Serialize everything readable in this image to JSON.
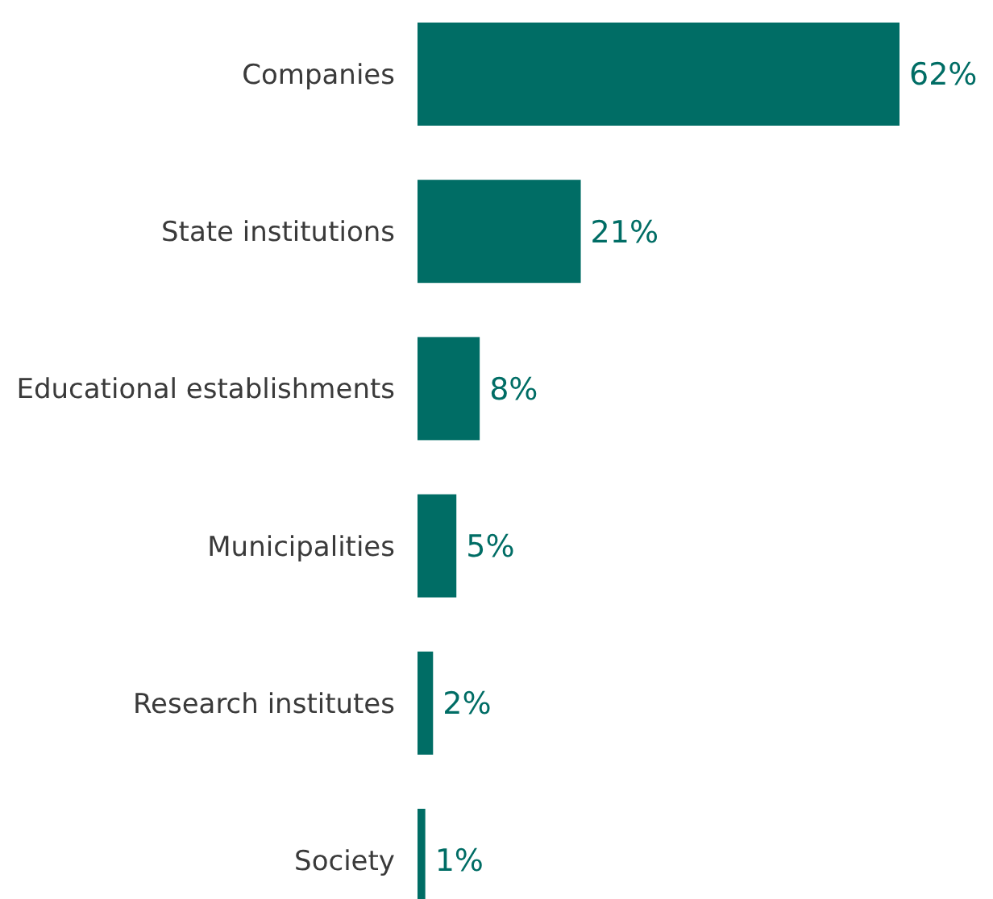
{
  "chart_data": {
    "type": "bar",
    "orientation": "horizontal",
    "categories": [
      "Companies",
      "State institutions",
      "Educational establishments",
      "Municipalities",
      "Research institutes",
      "Society"
    ],
    "values": [
      62,
      21,
      8,
      5,
      2,
      1
    ],
    "value_labels": [
      "62%",
      "21%",
      "8%",
      "5%",
      "2%",
      "1%"
    ],
    "color": "#006d65"
  }
}
